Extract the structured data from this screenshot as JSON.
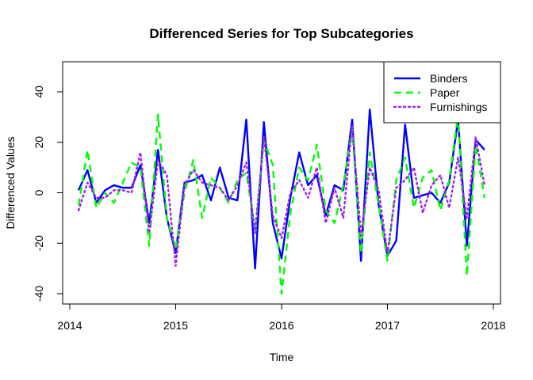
{
  "chart_data": {
    "type": "line",
    "title": "Differenced Series for Top Subcategories",
    "xlabel": "Time",
    "ylabel": "Differenced Values",
    "xlim": [
      2014.0,
      2018.0
    ],
    "ylim": [
      -40,
      50
    ],
    "x_ticks": [
      2014,
      2015,
      2016,
      2017,
      2018
    ],
    "y_ticks": [
      -40,
      -20,
      0,
      20,
      40
    ],
    "x_tick_labels": [
      "2014",
      "2015",
      "2016",
      "2017",
      "2018"
    ],
    "y_tick_labels": [
      "-40",
      "-20",
      "0",
      "20",
      "40"
    ],
    "legend_position": "top-right",
    "x": [
      2014.083,
      2014.167,
      2014.25,
      2014.333,
      2014.417,
      2014.5,
      2014.583,
      2014.667,
      2014.75,
      2014.833,
      2014.917,
      2015.0,
      2015.083,
      2015.167,
      2015.25,
      2015.333,
      2015.417,
      2015.5,
      2015.583,
      2015.667,
      2015.75,
      2015.833,
      2015.917,
      2016.0,
      2016.083,
      2016.167,
      2016.25,
      2016.333,
      2016.417,
      2016.5,
      2016.583,
      2016.667,
      2016.75,
      2016.833,
      2016.917,
      2017.0,
      2017.083,
      2017.167,
      2017.25,
      2017.333,
      2017.417,
      2017.5,
      2017.583,
      2017.667,
      2017.75,
      2017.833,
      2017.917
    ],
    "series": [
      {
        "name": "Binders",
        "color": "#0000ff",
        "dash": "solid",
        "values": [
          1,
          9,
          -4,
          1,
          3,
          2,
          2,
          11,
          -12,
          17,
          -10,
          -24,
          4,
          5,
          7,
          -3,
          10,
          -2,
          -3,
          29,
          -30,
          28,
          -12,
          -26,
          -2,
          16,
          3,
          7,
          -9,
          3,
          1,
          29,
          -27,
          33,
          -5,
          -25,
          -19,
          27,
          -2,
          -1,
          0,
          -4,
          4,
          29,
          -21,
          21,
          17
        ]
      },
      {
        "name": "Paper",
        "color": "#00ff00",
        "dash": "dashed",
        "values": [
          -5,
          17,
          -6,
          0,
          -4,
          4,
          12,
          10,
          -21,
          31,
          -10,
          -22,
          0,
          13,
          -10,
          6,
          2,
          -4,
          5,
          8,
          -15,
          21,
          11,
          -40,
          -8,
          10,
          5,
          19,
          -7,
          -12,
          3,
          25,
          -24,
          16,
          -5,
          -27,
          5,
          14,
          -6,
          6,
          9,
          -7,
          5,
          31,
          -33,
          19,
          -2
        ]
      },
      {
        "name": "Furnishings",
        "color": "#a020f0",
        "dash": "dotted",
        "values": [
          -7,
          4,
          -2,
          -2,
          1,
          1,
          0,
          16,
          -16,
          13,
          7,
          -29,
          3,
          9,
          4,
          3,
          2,
          -3,
          3,
          12,
          -16,
          22,
          -9,
          -18,
          0,
          5,
          -2,
          10,
          -12,
          2,
          -10,
          27,
          -17,
          10,
          1,
          -24,
          2,
          5,
          10,
          -8,
          3,
          7,
          -6,
          14,
          -10,
          22,
          3
        ]
      }
    ]
  }
}
